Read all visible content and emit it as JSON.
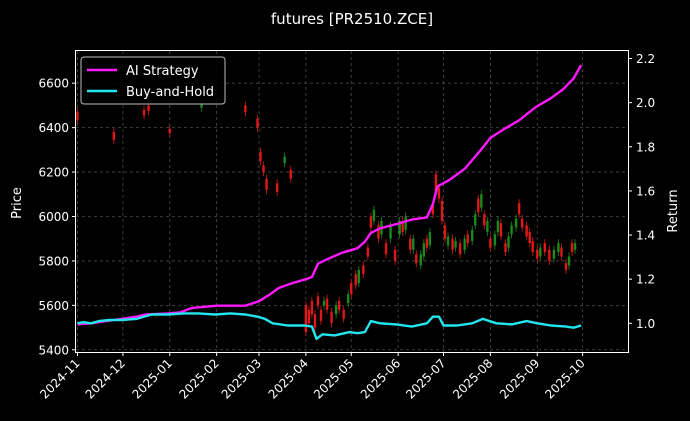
{
  "chart_data": {
    "type": "line",
    "title": "futures [PR2510.ZCE]",
    "xlabel": "",
    "ylabel": "Price",
    "y2label": "Return",
    "grid": true,
    "legend_placement": "top-left",
    "colors": {
      "background": "#000000",
      "up_candle": "#1a8a1a",
      "down_candle": "#e01818",
      "ai_strategy": "#ff1aff",
      "buy_and_hold": "#22e5f0",
      "grid": "#4a4a4a"
    },
    "x_range": [
      "2024-10-31",
      "2025-10-31"
    ],
    "ylim": [
      5390,
      6745
    ],
    "y2lim": [
      0.87,
      2.234
    ],
    "x_ticks": [
      "2024-11",
      "2024-12",
      "2025-01",
      "2025-02",
      "2025-03",
      "2025-04",
      "2025-05",
      "2025-06",
      "2025-07",
      "2025-08",
      "2025-09",
      "2025-10"
    ],
    "y_ticks": [
      5400,
      5600,
      5800,
      6000,
      6200,
      6400,
      6600
    ],
    "y2_ticks": [
      "1.0",
      "1.2",
      "1.4",
      "1.6",
      "1.8",
      "2.0",
      "2.2"
    ],
    "series": [
      {
        "name": "AI Strategy",
        "axis": "right",
        "points": [
          [
            "2024-11-01",
            0.995
          ],
          [
            "2024-11-10",
            1.0
          ],
          [
            "2024-11-20",
            1.01
          ],
          [
            "2024-11-30",
            1.02
          ],
          [
            "2024-12-10",
            1.03
          ],
          [
            "2024-12-16",
            1.04
          ],
          [
            "2024-12-31",
            1.045
          ],
          [
            "2025-01-08",
            1.05
          ],
          [
            "2025-01-16",
            1.07
          ],
          [
            "2025-02-01",
            1.08
          ],
          [
            "2025-02-20",
            1.08
          ],
          [
            "2025-03-01",
            1.1
          ],
          [
            "2025-03-08",
            1.13
          ],
          [
            "2025-03-14",
            1.16
          ],
          [
            "2025-03-22",
            1.18
          ],
          [
            "2025-04-01",
            1.2
          ],
          [
            "2025-04-05",
            1.21
          ],
          [
            "2025-04-09",
            1.27
          ],
          [
            "2025-04-15",
            1.29
          ],
          [
            "2025-04-25",
            1.32
          ],
          [
            "2025-05-05",
            1.34
          ],
          [
            "2025-05-10",
            1.37
          ],
          [
            "2025-05-14",
            1.41
          ],
          [
            "2025-05-20",
            1.43
          ],
          [
            "2025-05-31",
            1.45
          ],
          [
            "2025-06-10",
            1.47
          ],
          [
            "2025-06-20",
            1.48
          ],
          [
            "2025-06-24",
            1.54
          ],
          [
            "2025-06-27",
            1.62
          ],
          [
            "2025-07-05",
            1.65
          ],
          [
            "2025-07-15",
            1.7
          ],
          [
            "2025-07-25",
            1.78
          ],
          [
            "2025-08-01",
            1.84
          ],
          [
            "2025-08-10",
            1.88
          ],
          [
            "2025-08-20",
            1.92
          ],
          [
            "2025-08-31",
            1.98
          ],
          [
            "2025-09-10",
            2.02
          ],
          [
            "2025-09-18",
            2.06
          ],
          [
            "2025-09-25",
            2.11
          ],
          [
            "2025-09-30",
            2.17
          ]
        ]
      },
      {
        "name": "Buy-and-Hold",
        "axis": "right",
        "points": [
          [
            "2024-11-01",
            1.0
          ],
          [
            "2024-11-05",
            1.005
          ],
          [
            "2024-11-10",
            1.0
          ],
          [
            "2024-11-15",
            1.01
          ],
          [
            "2024-11-22",
            1.015
          ],
          [
            "2024-11-30",
            1.015
          ],
          [
            "2024-12-10",
            1.02
          ],
          [
            "2024-12-20",
            1.04
          ],
          [
            "2024-12-31",
            1.04
          ],
          [
            "2025-01-10",
            1.045
          ],
          [
            "2025-01-20",
            1.045
          ],
          [
            "2025-01-31",
            1.04
          ],
          [
            "2025-02-10",
            1.045
          ],
          [
            "2025-02-20",
            1.04
          ],
          [
            "2025-02-28",
            1.03
          ],
          [
            "2025-03-05",
            1.02
          ],
          [
            "2025-03-10",
            1.0
          ],
          [
            "2025-03-20",
            0.99
          ],
          [
            "2025-03-31",
            0.99
          ],
          [
            "2025-04-05",
            0.985
          ],
          [
            "2025-04-08",
            0.93
          ],
          [
            "2025-04-12",
            0.95
          ],
          [
            "2025-04-20",
            0.945
          ],
          [
            "2025-04-30",
            0.96
          ],
          [
            "2025-05-05",
            0.955
          ],
          [
            "2025-05-10",
            0.96
          ],
          [
            "2025-05-14",
            1.01
          ],
          [
            "2025-05-20",
            1.0
          ],
          [
            "2025-05-31",
            0.995
          ],
          [
            "2025-06-10",
            0.985
          ],
          [
            "2025-06-20",
            1.0
          ],
          [
            "2025-06-24",
            1.03
          ],
          [
            "2025-06-28",
            1.03
          ],
          [
            "2025-07-01",
            0.99
          ],
          [
            "2025-07-10",
            0.99
          ],
          [
            "2025-07-20",
            1.0
          ],
          [
            "2025-07-27",
            1.02
          ],
          [
            "2025-08-05",
            1.0
          ],
          [
            "2025-08-15",
            0.995
          ],
          [
            "2025-08-25",
            1.01
          ],
          [
            "2025-09-01",
            1.0
          ],
          [
            "2025-09-10",
            0.99
          ],
          [
            "2025-09-20",
            0.985
          ],
          [
            "2025-09-25",
            0.98
          ],
          [
            "2025-09-30",
            0.99
          ]
        ]
      }
    ],
    "candles": [
      [
        "2024-11-01",
        6470,
        6435
      ],
      [
        "2024-11-25",
        6380,
        6345
      ],
      [
        "2024-12-15",
        6480,
        6455
      ],
      [
        "2024-12-18",
        6500,
        6475
      ],
      [
        "2025-01-01",
        6395,
        6375
      ],
      [
        "2025-01-22",
        6490,
        6510
      ],
      [
        "2025-02-20",
        6500,
        6470
      ],
      [
        "2025-02-28",
        6440,
        6400
      ],
      [
        "2025-03-02",
        6290,
        6250
      ],
      [
        "2025-03-04",
        6230,
        6200
      ],
      [
        "2025-03-06",
        6170,
        6120
      ],
      [
        "2025-03-13",
        6150,
        6110
      ],
      [
        "2025-03-18",
        6240,
        6270
      ],
      [
        "2025-03-22",
        6210,
        6170
      ],
      [
        "2025-04-01",
        5600,
        5480
      ],
      [
        "2025-04-03",
        5580,
        5520
      ],
      [
        "2025-04-05",
        5620,
        5560
      ],
      [
        "2025-04-07",
        5560,
        5500
      ],
      [
        "2025-04-09",
        5640,
        5600
      ],
      [
        "2025-04-11",
        5580,
        5530
      ],
      [
        "2025-04-13",
        5600,
        5620
      ],
      [
        "2025-04-15",
        5630,
        5580
      ],
      [
        "2025-04-18",
        5570,
        5520
      ],
      [
        "2025-04-21",
        5560,
        5600
      ],
      [
        "2025-04-23",
        5620,
        5580
      ],
      [
        "2025-04-26",
        5580,
        5540
      ],
      [
        "2025-04-29",
        5610,
        5650
      ],
      [
        "2025-05-01",
        5700,
        5650
      ],
      [
        "2025-05-04",
        5740,
        5690
      ],
      [
        "2025-05-06",
        5700,
        5760
      ],
      [
        "2025-05-09",
        5780,
        5740
      ],
      [
        "2025-05-12",
        5860,
        5820
      ],
      [
        "2025-05-14",
        6000,
        5950
      ],
      [
        "2025-05-16",
        5980,
        6030
      ],
      [
        "2025-05-19",
        5960,
        5900
      ],
      [
        "2025-05-21",
        5920,
        5980
      ],
      [
        "2025-05-24",
        5880,
        5830
      ],
      [
        "2025-05-27",
        5900,
        5960
      ],
      [
        "2025-05-30",
        5850,
        5800
      ],
      [
        "2025-06-02",
        5920,
        5980
      ],
      [
        "2025-06-04",
        5980,
        5930
      ],
      [
        "2025-06-06",
        5940,
        6000
      ],
      [
        "2025-06-09",
        5900,
        5850
      ],
      [
        "2025-06-11",
        5850,
        5900
      ],
      [
        "2025-06-13",
        5830,
        5790
      ],
      [
        "2025-06-16",
        5780,
        5830
      ],
      [
        "2025-06-18",
        5820,
        5880
      ],
      [
        "2025-06-20",
        5900,
        5860
      ],
      [
        "2025-06-22",
        5870,
        5930
      ],
      [
        "2025-06-24",
        6050,
        6010
      ],
      [
        "2025-06-26",
        6190,
        6110
      ],
      [
        "2025-06-28",
        6130,
        6080
      ],
      [
        "2025-06-30",
        6070,
        5980
      ],
      [
        "2025-07-02",
        5960,
        5900
      ],
      [
        "2025-07-04",
        5870,
        5910
      ],
      [
        "2025-07-07",
        5900,
        5850
      ],
      [
        "2025-07-09",
        5860,
        5890
      ],
      [
        "2025-07-12",
        5880,
        5830
      ],
      [
        "2025-07-15",
        5850,
        5900
      ],
      [
        "2025-07-17",
        5920,
        5880
      ],
      [
        "2025-07-20",
        5890,
        5940
      ],
      [
        "2025-07-22",
        5960,
        6010
      ],
      [
        "2025-07-24",
        6080,
        6020
      ],
      [
        "2025-07-26",
        6040,
        6100
      ],
      [
        "2025-07-28",
        6010,
        5960
      ],
      [
        "2025-07-30",
        5930,
        5980
      ],
      [
        "2025-08-01",
        5900,
        5860
      ],
      [
        "2025-08-04",
        5870,
        5920
      ],
      [
        "2025-08-06",
        5930,
        5980
      ],
      [
        "2025-08-08",
        5970,
        5910
      ],
      [
        "2025-08-11",
        5880,
        5840
      ],
      [
        "2025-08-13",
        5860,
        5910
      ],
      [
        "2025-08-15",
        5920,
        5960
      ],
      [
        "2025-08-18",
        5950,
        5990
      ],
      [
        "2025-08-20",
        6060,
        6010
      ],
      [
        "2025-08-22",
        5990,
        5950
      ],
      [
        "2025-08-25",
        5960,
        5910
      ],
      [
        "2025-08-27",
        5930,
        5880
      ],
      [
        "2025-08-29",
        5890,
        5840
      ],
      [
        "2025-09-01",
        5850,
        5810
      ],
      [
        "2025-09-03",
        5820,
        5860
      ],
      [
        "2025-09-06",
        5880,
        5840
      ],
      [
        "2025-09-09",
        5850,
        5800
      ],
      [
        "2025-09-12",
        5810,
        5850
      ],
      [
        "2025-09-15",
        5840,
        5880
      ],
      [
        "2025-09-17",
        5860,
        5820
      ],
      [
        "2025-09-20",
        5790,
        5760
      ],
      [
        "2025-09-22",
        5780,
        5820
      ],
      [
        "2025-09-24",
        5880,
        5840
      ],
      [
        "2025-09-26",
        5850,
        5880
      ]
    ]
  }
}
